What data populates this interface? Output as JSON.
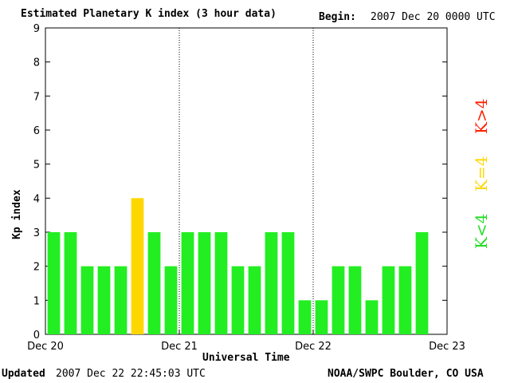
{
  "header": {
    "title": "Estimated Planetary K index (3 hour data)",
    "begin_label": "Begin:",
    "begin_value": "2007 Dec 20 0000 UTC"
  },
  "footer": {
    "updated_label": "Updated",
    "updated_value": "2007 Dec 22 22:45:03 UTC",
    "credit": "NOAA/SWPC Boulder, CO USA"
  },
  "legend": {
    "red": "K>4",
    "yellow": "K=4",
    "green": "K<4"
  },
  "colors": {
    "low": "#22ee22",
    "moderate": "#ffd700",
    "high": "#ff2000"
  },
  "chart_data": {
    "type": "bar",
    "ylabel": "Kp index",
    "xlabel": "Universal Time",
    "ylim": [
      0,
      9
    ],
    "yticks": [
      0,
      1,
      2,
      3,
      4,
      5,
      6,
      7,
      8,
      9
    ],
    "x_tick_labels": [
      "Dec 20",
      "Dec 21",
      "Dec 22",
      "Dec 23"
    ],
    "day_dividers": [
      "Dec 21",
      "Dec 22"
    ],
    "values": [
      3,
      3,
      2,
      2,
      2,
      4,
      3,
      2,
      3,
      3,
      3,
      2,
      2,
      3,
      3,
      1,
      1,
      2,
      2,
      1,
      2,
      2,
      3
    ]
  }
}
